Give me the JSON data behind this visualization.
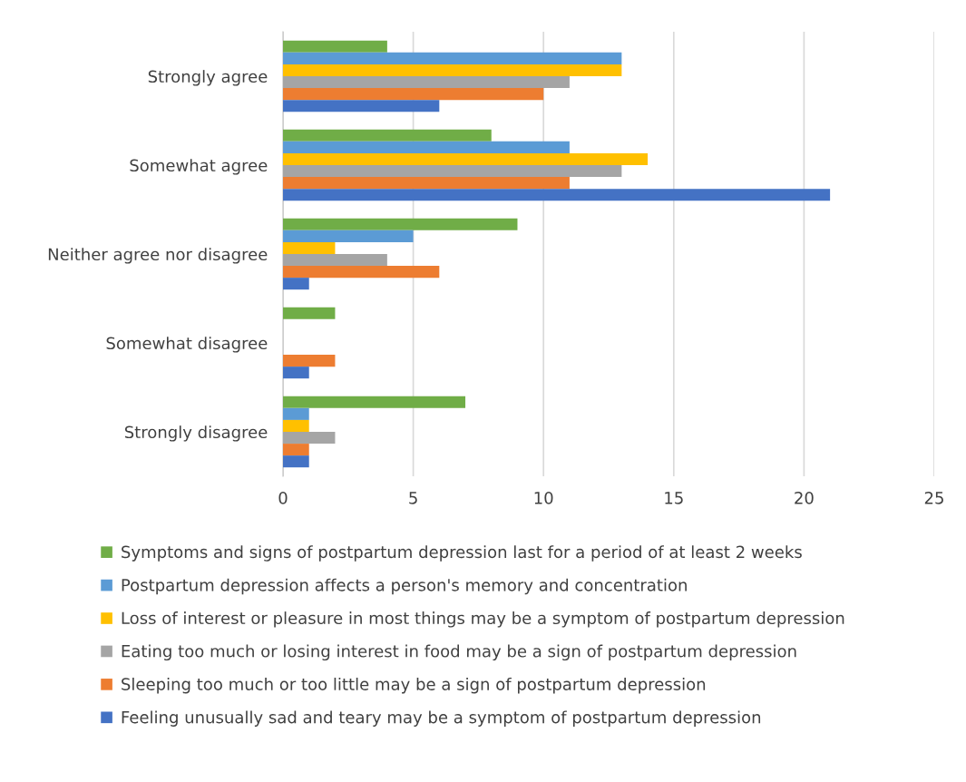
{
  "chart_data": {
    "type": "bar",
    "orientation": "horizontal",
    "categories": [
      "Strongly agree",
      "Somewhat agree",
      "Neither agree nor disagree",
      "Somewhat disagree",
      "Strongly disagree"
    ],
    "series": [
      {
        "name": "Symptoms and signs of postpartum depression last for a period of at least 2 weeks",
        "color": "#70ad47",
        "values": [
          4,
          8,
          9,
          2,
          7
        ]
      },
      {
        "name": "Postpartum depression affects a person's memory and concentration",
        "color": "#5b9bd5",
        "values": [
          13,
          11,
          5,
          0,
          1
        ]
      },
      {
        "name": "Loss of interest or pleasure in most things may be a symptom of postpartum depression",
        "color": "#ffc000",
        "values": [
          13,
          14,
          2,
          0,
          1
        ]
      },
      {
        "name": "Eating too much or losing interest in food may be a sign of postpartum depression",
        "color": "#a5a5a5",
        "values": [
          11,
          13,
          4,
          0,
          2
        ]
      },
      {
        "name": "Sleeping too much or too little may be a sign of postpartum depression",
        "color": "#ed7d31",
        "values": [
          10,
          11,
          6,
          2,
          1
        ]
      },
      {
        "name": "Feeling unusually sad and teary may be a symptom of postpartum depression",
        "color": "#4472c4",
        "values": [
          6,
          21,
          1,
          1,
          1
        ]
      }
    ],
    "xlim": [
      0,
      25
    ],
    "xticks": [
      0,
      5,
      10,
      15,
      20,
      25
    ],
    "grid": "x",
    "legend": "bottom"
  }
}
